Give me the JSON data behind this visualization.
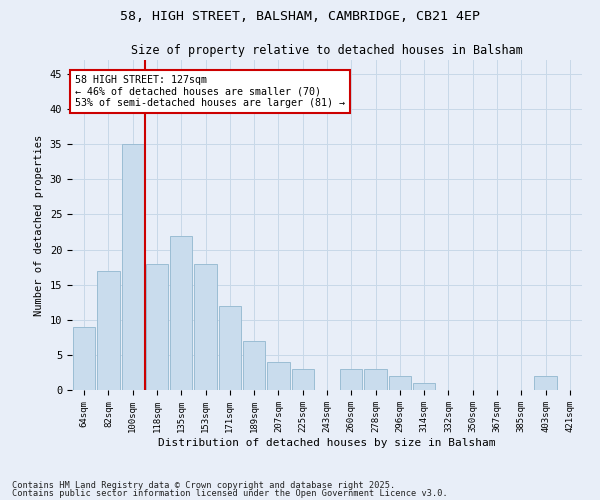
{
  "title1": "58, HIGH STREET, BALSHAM, CAMBRIDGE, CB21 4EP",
  "title2": "Size of property relative to detached houses in Balsham",
  "xlabel": "Distribution of detached houses by size in Balsham",
  "ylabel": "Number of detached properties",
  "bins": [
    "64sqm",
    "82sqm",
    "100sqm",
    "118sqm",
    "135sqm",
    "153sqm",
    "171sqm",
    "189sqm",
    "207sqm",
    "225sqm",
    "243sqm",
    "260sqm",
    "278sqm",
    "296sqm",
    "314sqm",
    "332sqm",
    "350sqm",
    "367sqm",
    "385sqm",
    "403sqm",
    "421sqm"
  ],
  "values": [
    9,
    17,
    35,
    18,
    22,
    18,
    12,
    7,
    4,
    3,
    0,
    3,
    3,
    2,
    1,
    0,
    0,
    0,
    0,
    2,
    0
  ],
  "bar_color": "#c9dced",
  "bar_edge_color": "#9bbdd4",
  "subject_line_label": "58 HIGH STREET: 127sqm",
  "annotation_line1": "← 46% of detached houses are smaller (70)",
  "annotation_line2": "53% of semi-detached houses are larger (81) →",
  "annotation_box_color": "#ffffff",
  "annotation_box_edge": "#cc0000",
  "subject_line_color": "#cc0000",
  "grid_color": "#c8d8e8",
  "background_color": "#e8eef8",
  "footnote1": "Contains HM Land Registry data © Crown copyright and database right 2025.",
  "footnote2": "Contains public sector information licensed under the Open Government Licence v3.0.",
  "ylim": [
    0,
    47
  ],
  "yticks": [
    0,
    5,
    10,
    15,
    20,
    25,
    30,
    35,
    40,
    45
  ],
  "subject_line_bin_index": 2.5
}
